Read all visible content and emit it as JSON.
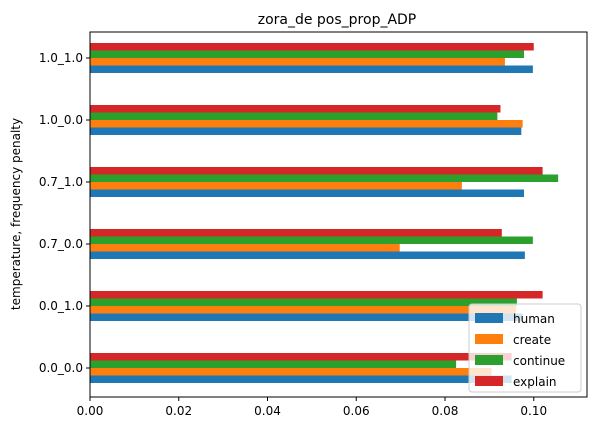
{
  "chart_data": {
    "type": "bar",
    "orientation": "horizontal",
    "title": "zora_de pos_prop_ADP",
    "ylabel": "temperature, frequency penalty",
    "xlabel": "",
    "xlim": [
      0,
      0.112
    ],
    "xticks": [
      "0.00",
      "0.02",
      "0.04",
      "0.06",
      "0.08",
      "0.10"
    ],
    "categories": [
      "0.0_0.0",
      "0.0_1.0",
      "0.7_0.0",
      "0.7_1.0",
      "1.0_0.0",
      "1.0_1.0"
    ],
    "series": [
      {
        "name": "human",
        "color": "#1f77b4",
        "values": [
          0.095,
          0.0975,
          0.098,
          0.0978,
          0.0972,
          0.0998
        ]
      },
      {
        "name": "create",
        "color": "#ff7f0e",
        "values": [
          0.0905,
          0.096,
          0.0698,
          0.0838,
          0.0975,
          0.0935
        ]
      },
      {
        "name": "continue",
        "color": "#2ca02c",
        "values": [
          0.0825,
          0.0962,
          0.0998,
          0.1055,
          0.0918,
          0.0978
        ]
      },
      {
        "name": "explain",
        "color": "#d62728",
        "values": [
          0.095,
          0.102,
          0.0928,
          0.102,
          0.0925,
          0.1
        ]
      }
    ],
    "grid": false,
    "legend_position": "lower-right"
  }
}
